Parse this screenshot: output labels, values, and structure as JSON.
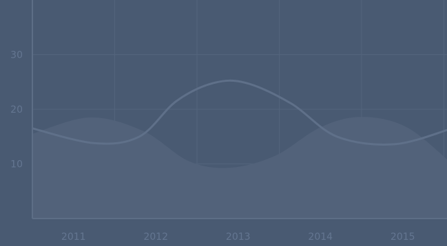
{
  "chart_data": {
    "type": "area",
    "title": "",
    "xlabel": "",
    "ylabel": "",
    "categories": [
      "2011",
      "2012",
      "2013",
      "2014",
      "2015"
    ],
    "y_ticks": [
      "10",
      "20",
      "30"
    ],
    "ylim": [
      0,
      40
    ],
    "grid": true,
    "legend": "none",
    "series": [
      {
        "kind": "area",
        "x": [
          2010.0,
          2010.7,
          2011.35,
          2011.9,
          2012.4,
          2012.95,
          2013.5,
          2014.0,
          2014.55,
          2015.1
        ],
        "values": [
          15.5,
          18.5,
          16,
          10.5,
          9.3,
          11.5,
          16.7,
          18.6,
          16.7,
          10
        ]
      },
      {
        "kind": "line",
        "x": [
          2010.0,
          2010.75,
          2011.3,
          2011.75,
          2012.2,
          2012.6,
          2013.15,
          2013.7,
          2014.4,
          2015.1
        ],
        "values": [
          16.5,
          13.8,
          15,
          21.5,
          24.8,
          24.8,
          21,
          15,
          13.6,
          16.5
        ]
      }
    ],
    "colors": {
      "background": "#495a72",
      "grid": "#53647c",
      "axis": "#5d6e86",
      "area": "#52627a",
      "line": "#5f7089",
      "tick_text": "#647691"
    }
  }
}
